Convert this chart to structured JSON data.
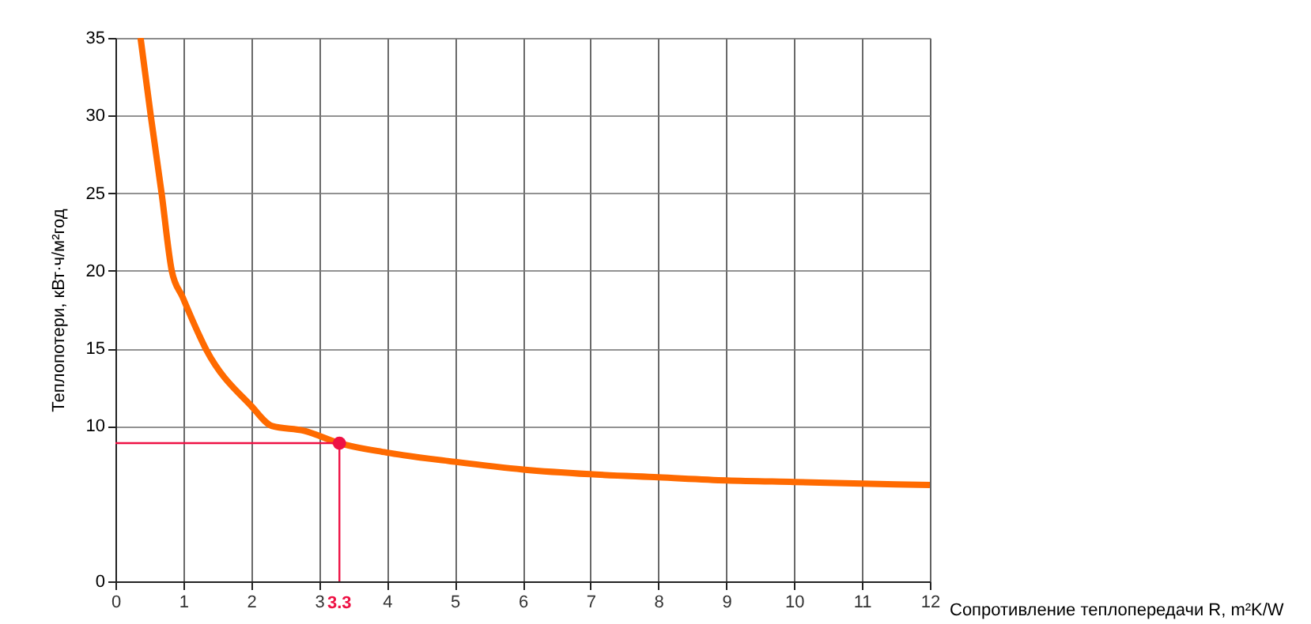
{
  "chart_data": {
    "type": "line",
    "xlabel": "Сопротивление теплопередачи R, m²K/W",
    "ylabel": "Теплопотери, кВт·ч/м²год",
    "xlim": [
      0,
      12
    ],
    "xticks": [
      0,
      1,
      2,
      3,
      4,
      5,
      6,
      7,
      8,
      9,
      10,
      11,
      12
    ],
    "ylim": [
      0,
      35
    ],
    "yticks": [
      0,
      10,
      15,
      20,
      25,
      30,
      35
    ],
    "grid": true,
    "marker": "none",
    "line_style": "solid",
    "series": [
      {
        "color": "#ff6a00",
        "x": [
          0.37,
          0.52,
          0.68,
          0.83,
          0.99,
          1.34,
          2.0,
          2.31,
          2.78,
          3.3,
          3.99,
          5.0,
          6.01,
          6.99,
          8.0,
          9.01,
          10.0,
          11.0,
          12.0
        ],
        "values": [
          35,
          30.0,
          25.0,
          20.0,
          18.3,
          14.9,
          11.3,
          10.0,
          9.7,
          8.9,
          8.3,
          7.7,
          7.2,
          6.9,
          6.7,
          6.5,
          6.4,
          6.3,
          6.2
        ]
      },
      {
        "type": "scatter",
        "marker": "circle",
        "color": "#ee1144",
        "x": [
          3.3
        ],
        "values": [
          8.9
        ]
      }
    ],
    "ref_lines": [
      {
        "axis": "x",
        "value": 3.3,
        "label": "3.3",
        "color": "#ee1144"
      },
      {
        "axis": "y",
        "value": 8.9,
        "color": "#ee1144"
      }
    ]
  }
}
